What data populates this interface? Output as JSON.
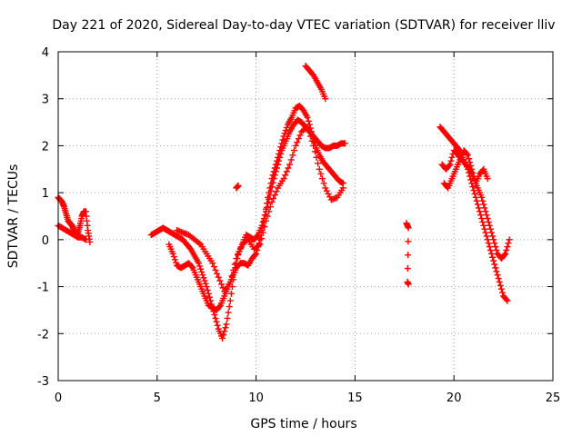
{
  "chart_data": {
    "type": "scatter",
    "title": "Day 221 of 2020, Sidereal Day-to-day VTEC variation (SDTVAR) for receiver lliv",
    "xlabel": "GPS time / hours",
    "ylabel": "SDTVAR / TECUs",
    "xlim": [
      0,
      25
    ],
    "ylim": [
      -3,
      4
    ],
    "x_ticks": [
      0,
      5,
      10,
      15,
      20,
      25
    ],
    "y_ticks": [
      -3,
      -2,
      -1,
      0,
      1,
      2,
      3,
      4
    ],
    "grid": true,
    "marker": "+",
    "color": "#ff0000",
    "series": [
      {
        "name": "SDTVAR",
        "segments": [
          {
            "x": [
              0.0,
              0.1,
              0.2,
              0.3,
              0.4,
              0.5,
              0.6,
              0.7,
              0.8,
              0.9,
              1.0,
              1.1,
              1.2,
              1.3,
              1.4,
              1.5,
              1.6
            ],
            "y": [
              0.9,
              0.85,
              0.8,
              0.7,
              0.55,
              0.4,
              0.35,
              0.3,
              0.2,
              0.1,
              0.15,
              0.3,
              0.5,
              0.6,
              0.6,
              0.2,
              -0.05
            ]
          },
          {
            "x": [
              0.0,
              0.2,
              0.4,
              0.6,
              0.8,
              1.0,
              1.2,
              1.4
            ],
            "y": [
              0.3,
              0.25,
              0.2,
              0.15,
              0.1,
              0.05,
              0.05,
              0.0
            ]
          },
          {
            "x": [
              4.7,
              4.9,
              5.1,
              5.3,
              5.5,
              5.7,
              5.9,
              6.1,
              6.3,
              6.5,
              6.7,
              6.9,
              7.1,
              7.3,
              7.5,
              7.7,
              7.9,
              8.1,
              8.3,
              8.5,
              8.7,
              8.9,
              9.1,
              9.3,
              9.5,
              9.7,
              9.9,
              10.1,
              10.3,
              10.5,
              10.7,
              10.9,
              11.1,
              11.3,
              11.5,
              11.7,
              11.9,
              12.1,
              12.3,
              12.5,
              12.7,
              12.9,
              13.1,
              13.3,
              13.5,
              13.7,
              13.9,
              14.1,
              14.3,
              14.5
            ],
            "y": [
              0.1,
              0.15,
              0.2,
              0.25,
              0.2,
              0.15,
              0.1,
              0.05,
              0.0,
              -0.1,
              -0.2,
              -0.35,
              -0.5,
              -0.75,
              -1.0,
              -1.3,
              -1.6,
              -1.9,
              -2.1,
              -1.8,
              -1.3,
              -0.7,
              -0.3,
              -0.1,
              0.1,
              0.05,
              0.0,
              0.1,
              0.3,
              0.6,
              0.95,
              1.3,
              1.6,
              1.9,
              2.1,
              2.3,
              2.45,
              2.55,
              2.5,
              2.4,
              2.3,
              2.2,
              2.1,
              2.0,
              1.95,
              1.95,
              2.0,
              2.0,
              2.05,
              2.05
            ]
          },
          {
            "x": [
              5.6,
              5.8,
              6.0,
              6.2,
              6.4,
              6.6,
              6.8,
              7.0,
              7.2,
              7.4,
              7.6,
              7.8,
              8.0,
              8.2,
              8.4,
              8.6,
              8.8,
              9.0,
              9.2,
              9.4,
              9.6,
              9.8,
              10.0,
              10.2,
              10.4,
              10.6,
              10.8,
              11.0,
              11.2,
              11.4,
              11.6,
              11.8,
              12.0,
              12.2,
              12.4,
              12.6,
              12.8,
              13.0,
              13.2,
              13.4,
              13.6,
              13.8,
              14.0,
              14.2,
              14.4
            ],
            "y": [
              -0.1,
              -0.3,
              -0.55,
              -0.6,
              -0.55,
              -0.5,
              -0.6,
              -0.8,
              -1.0,
              -1.2,
              -1.4,
              -1.45,
              -1.5,
              -1.4,
              -1.2,
              -1.0,
              -0.8,
              -0.6,
              -0.5,
              -0.5,
              -0.55,
              -0.4,
              -0.3,
              0.0,
              0.4,
              0.9,
              1.3,
              1.6,
              1.9,
              2.2,
              2.45,
              2.6,
              2.8,
              2.85,
              2.75,
              2.6,
              2.3,
              2.0,
              1.8,
              1.65,
              1.55,
              1.45,
              1.35,
              1.25,
              1.2
            ]
          },
          {
            "x": [
              6.0,
              6.3,
              6.6,
              6.9,
              7.2,
              7.5,
              7.8,
              8.1,
              8.4,
              8.7,
              9.0,
              9.3,
              9.6,
              9.9,
              10.2,
              10.5,
              10.8,
              11.1,
              11.4,
              11.7,
              12.0,
              12.3,
              12.6,
              12.9,
              13.2,
              13.5,
              13.8,
              14.1,
              14.4
            ],
            "y": [
              0.2,
              0.15,
              0.1,
              0.0,
              -0.1,
              -0.3,
              -0.5,
              -0.8,
              -1.1,
              -0.9,
              -0.4,
              -0.1,
              0.0,
              -0.2,
              -0.1,
              0.4,
              0.8,
              1.1,
              1.3,
              1.6,
              2.0,
              2.3,
              2.4,
              2.0,
              1.5,
              1.1,
              0.85,
              0.9,
              1.1
            ]
          },
          {
            "x": [
              12.5,
              12.7,
              12.9,
              13.1,
              13.3,
              13.5
            ],
            "y": [
              3.7,
              3.6,
              3.5,
              3.35,
              3.2,
              3.0
            ]
          },
          {
            "x": [
              9.0,
              9.1
            ],
            "y": [
              1.1,
              1.15
            ]
          },
          {
            "x": [
              17.6,
              17.7,
              17.65,
              17.7
            ],
            "y": [
              0.35,
              0.25,
              -0.9,
              -0.95
            ]
          },
          {
            "x": [
              19.3,
              19.5,
              19.7,
              19.9,
              20.1,
              20.3,
              20.5,
              20.7,
              20.9,
              21.1,
              21.3,
              21.5,
              21.7,
              21.9,
              22.1,
              22.3,
              22.5,
              22.7
            ],
            "y": [
              2.4,
              2.3,
              2.2,
              2.1,
              2.0,
              1.9,
              1.7,
              1.5,
              1.2,
              0.9,
              0.6,
              0.3,
              0.0,
              -0.3,
              -0.6,
              -0.9,
              -1.2,
              -1.3
            ]
          },
          {
            "x": [
              19.4,
              19.6,
              19.8,
              20.0,
              20.2,
              20.4,
              20.6,
              20.8,
              21.0,
              21.2,
              21.4,
              21.6,
              21.8,
              22.0,
              22.2,
              22.4,
              22.6,
              22.8
            ],
            "y": [
              1.6,
              1.5,
              1.6,
              1.9,
              1.8,
              1.7,
              1.6,
              1.5,
              1.3,
              1.1,
              0.9,
              0.6,
              0.3,
              0.0,
              -0.3,
              -0.4,
              -0.3,
              0.0
            ]
          },
          {
            "x": [
              19.5,
              19.7,
              19.9,
              20.1,
              20.3,
              20.5,
              20.7,
              20.9,
              21.1,
              21.3,
              21.5,
              21.7
            ],
            "y": [
              1.2,
              1.1,
              1.3,
              1.5,
              1.7,
              1.9,
              1.8,
              1.5,
              1.2,
              1.4,
              1.5,
              1.3
            ]
          }
        ]
      }
    ]
  }
}
